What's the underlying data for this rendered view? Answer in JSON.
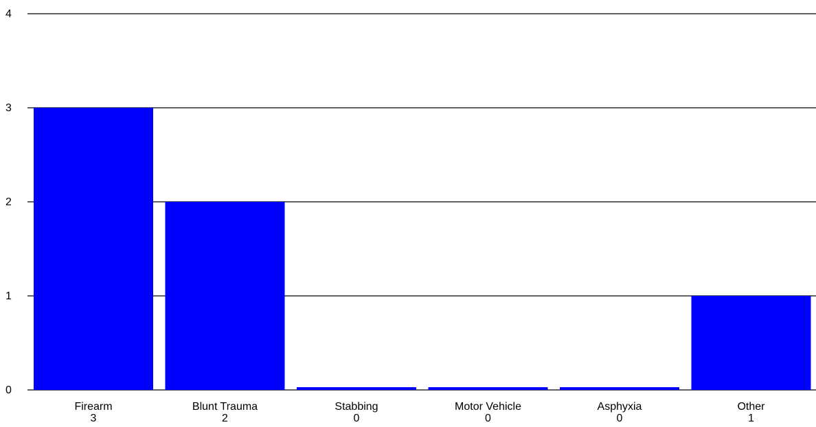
{
  "chart_data": {
    "type": "bar",
    "title": "",
    "xlabel": "",
    "ylabel": "",
    "categories": [
      "Firearm",
      "Blunt Trauma",
      "Stabbing",
      "Motor Vehicle",
      "Asphyxia",
      "Other"
    ],
    "values": [
      3,
      2,
      0,
      0,
      0,
      1
    ],
    "value_labels": [
      "3",
      "2",
      "0",
      "0",
      "0",
      "1"
    ],
    "ylim": [
      0,
      4
    ],
    "yticks": [
      "0",
      "1",
      "2",
      "3",
      "4"
    ],
    "grid": true,
    "legend": "none",
    "colors": {
      "bar": "#0000ff",
      "grid": "#000000",
      "text": "#000000",
      "background": "#ffffff"
    }
  }
}
